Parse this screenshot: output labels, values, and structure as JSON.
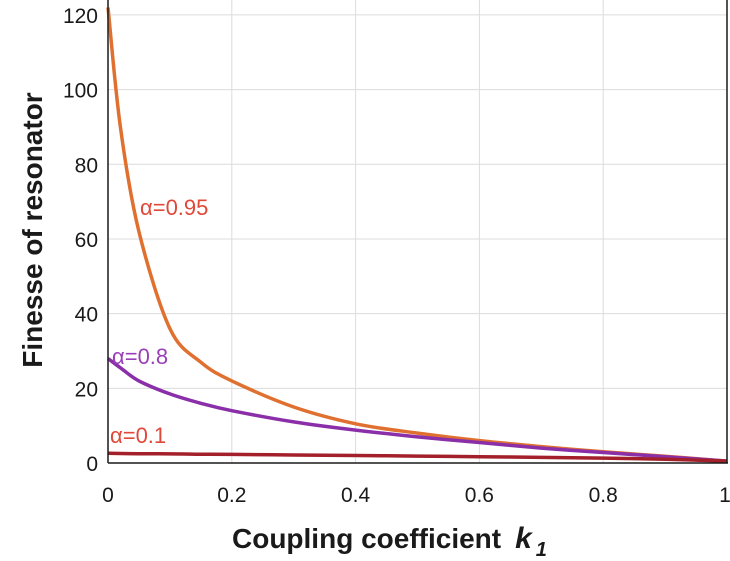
{
  "chart_data": {
    "type": "line",
    "title": "",
    "xlabel": "Coupling coefficient",
    "xlabel_var": "k",
    "xlabel_sub": "1",
    "ylabel": "Finesse of resonator",
    "xlim": [
      0,
      1
    ],
    "ylim": [
      0,
      124
    ],
    "grid": true,
    "x_ticks": [
      "0",
      "0.2",
      "0.4",
      "0.6",
      "0.8",
      "1"
    ],
    "y_ticks": [
      "0",
      "20",
      "40",
      "60",
      "80",
      "100",
      "120"
    ],
    "x_tick_values": [
      0,
      0.2,
      0.4,
      0.6,
      0.8,
      1
    ],
    "y_tick_values": [
      0,
      20,
      40,
      60,
      80,
      100,
      120
    ],
    "x": [
      0,
      0.02,
      0.05,
      0.1,
      0.15,
      0.2,
      0.3,
      0.4,
      0.5,
      0.6,
      0.7,
      0.8,
      0.9,
      1.0
    ],
    "series": [
      {
        "name": "α=0.95",
        "color": "#e07030",
        "label_color": "#e0483a",
        "values": [
          122,
          90,
          62,
          36,
          27,
          22,
          15,
          10.5,
          8,
          6,
          4.4,
          3,
          1.8,
          0.5
        ]
      },
      {
        "name": "α=0.8",
        "color": "#8a2fa8",
        "label_color": "#9a3fb8",
        "values": [
          28,
          25.5,
          22,
          18.5,
          16,
          14,
          11,
          8.8,
          7,
          5.5,
          4,
          2.8,
          1.7,
          0.5
        ]
      },
      {
        "name": "α=0.1",
        "color": "#a3202a",
        "label_color": "#e0483a",
        "values": [
          2.6,
          2.55,
          2.5,
          2.45,
          2.35,
          2.3,
          2.15,
          2.0,
          1.85,
          1.7,
          1.5,
          1.3,
          1.0,
          0.5
        ]
      }
    ],
    "annotations": [
      "α=0.95",
      "α=0.8",
      "α=0.1"
    ]
  }
}
